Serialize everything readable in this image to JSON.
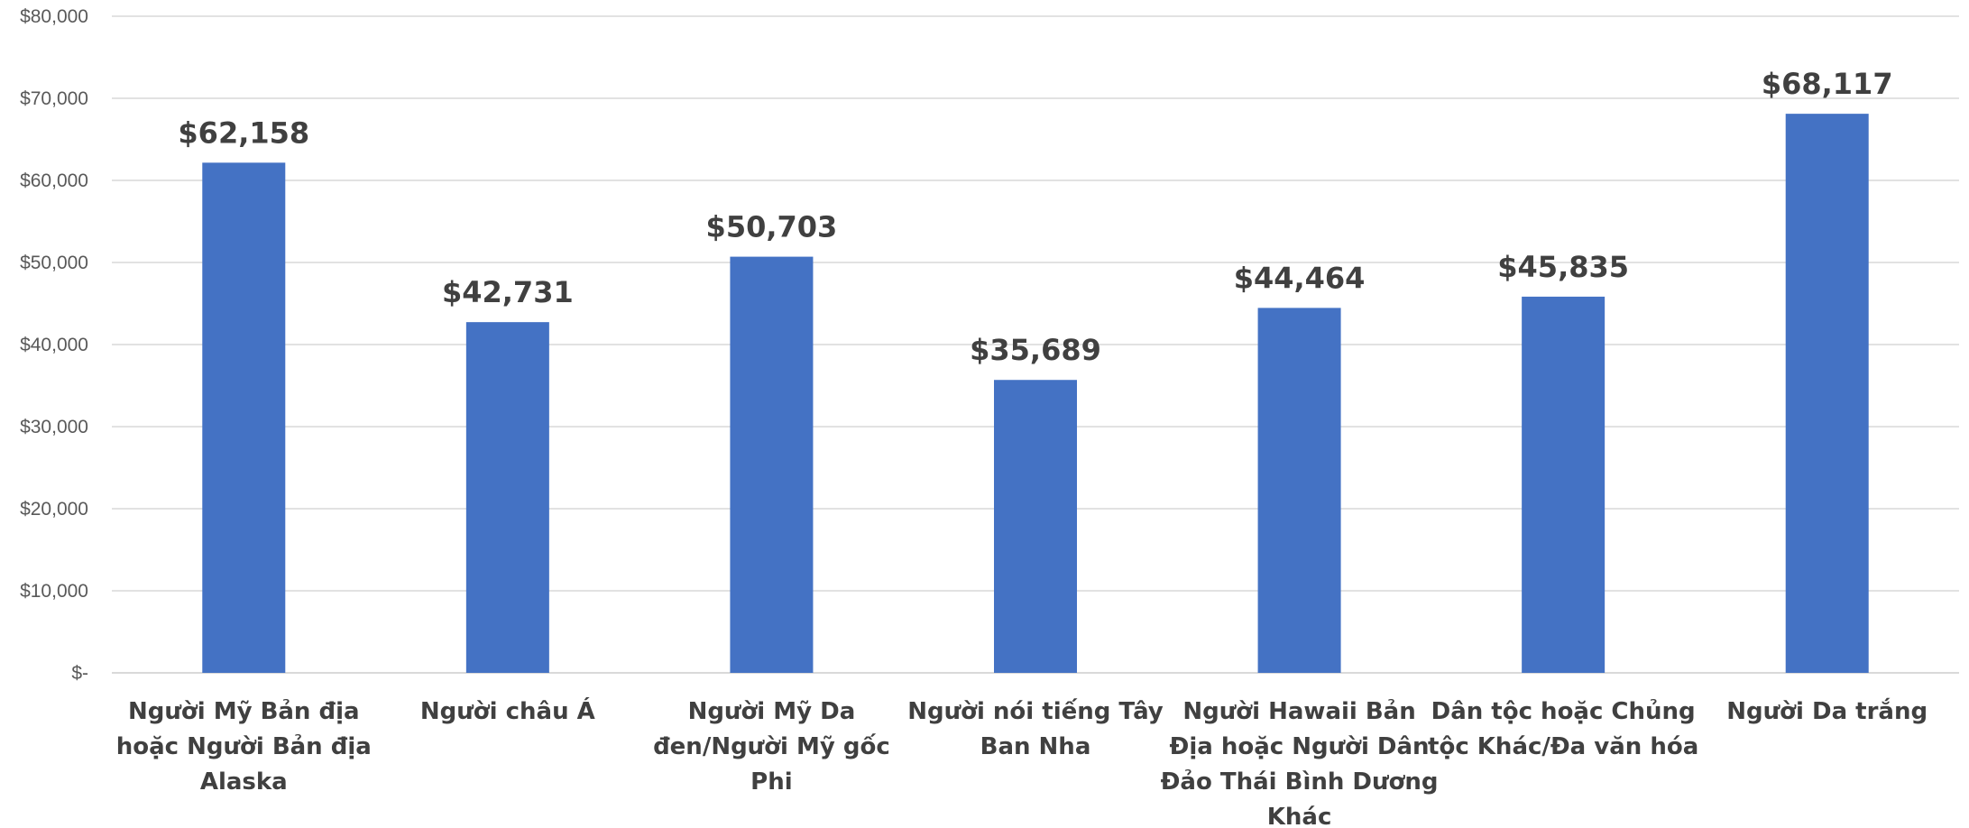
{
  "chart_data": {
    "type": "bar",
    "title": "",
    "xlabel": "",
    "ylabel": "",
    "categories": [
      [
        "Người Mỹ Bản địa",
        "hoặc Người Bản địa",
        "Alaska"
      ],
      [
        "Người châu Á"
      ],
      [
        "Người Mỹ Da",
        "đen/Người Mỹ gốc",
        "Phi"
      ],
      [
        "Người nói tiếng Tây",
        "Ban Nha"
      ],
      [
        "Người Hawaii Bản",
        "Địa hoặc Người Dân",
        "Đảo Thái Bình Dương",
        "Khác"
      ],
      [
        "Dân tộc hoặc Chủng",
        "tộc Khác/Đa văn hóa"
      ],
      [
        "Người Da trắng"
      ]
    ],
    "values": [
      62158,
      42731,
      50703,
      35689,
      44464,
      45835,
      68117
    ],
    "data_labels": [
      "$62,158",
      "$42,731",
      "$50,703",
      "$35,689",
      "$44,464",
      "$45,835",
      "$68,117"
    ],
    "ylim": [
      0,
      80000
    ],
    "yticks": [
      0,
      10000,
      20000,
      30000,
      40000,
      50000,
      60000,
      70000,
      80000
    ],
    "ytick_labels": [
      "$-",
      "$10,000",
      "$20,000",
      "$30,000",
      "$40,000",
      "$50,000",
      "$60,000",
      "$70,000",
      "$80,000"
    ],
    "grid": true,
    "legend": "none",
    "bar_color": "#4472c4"
  }
}
